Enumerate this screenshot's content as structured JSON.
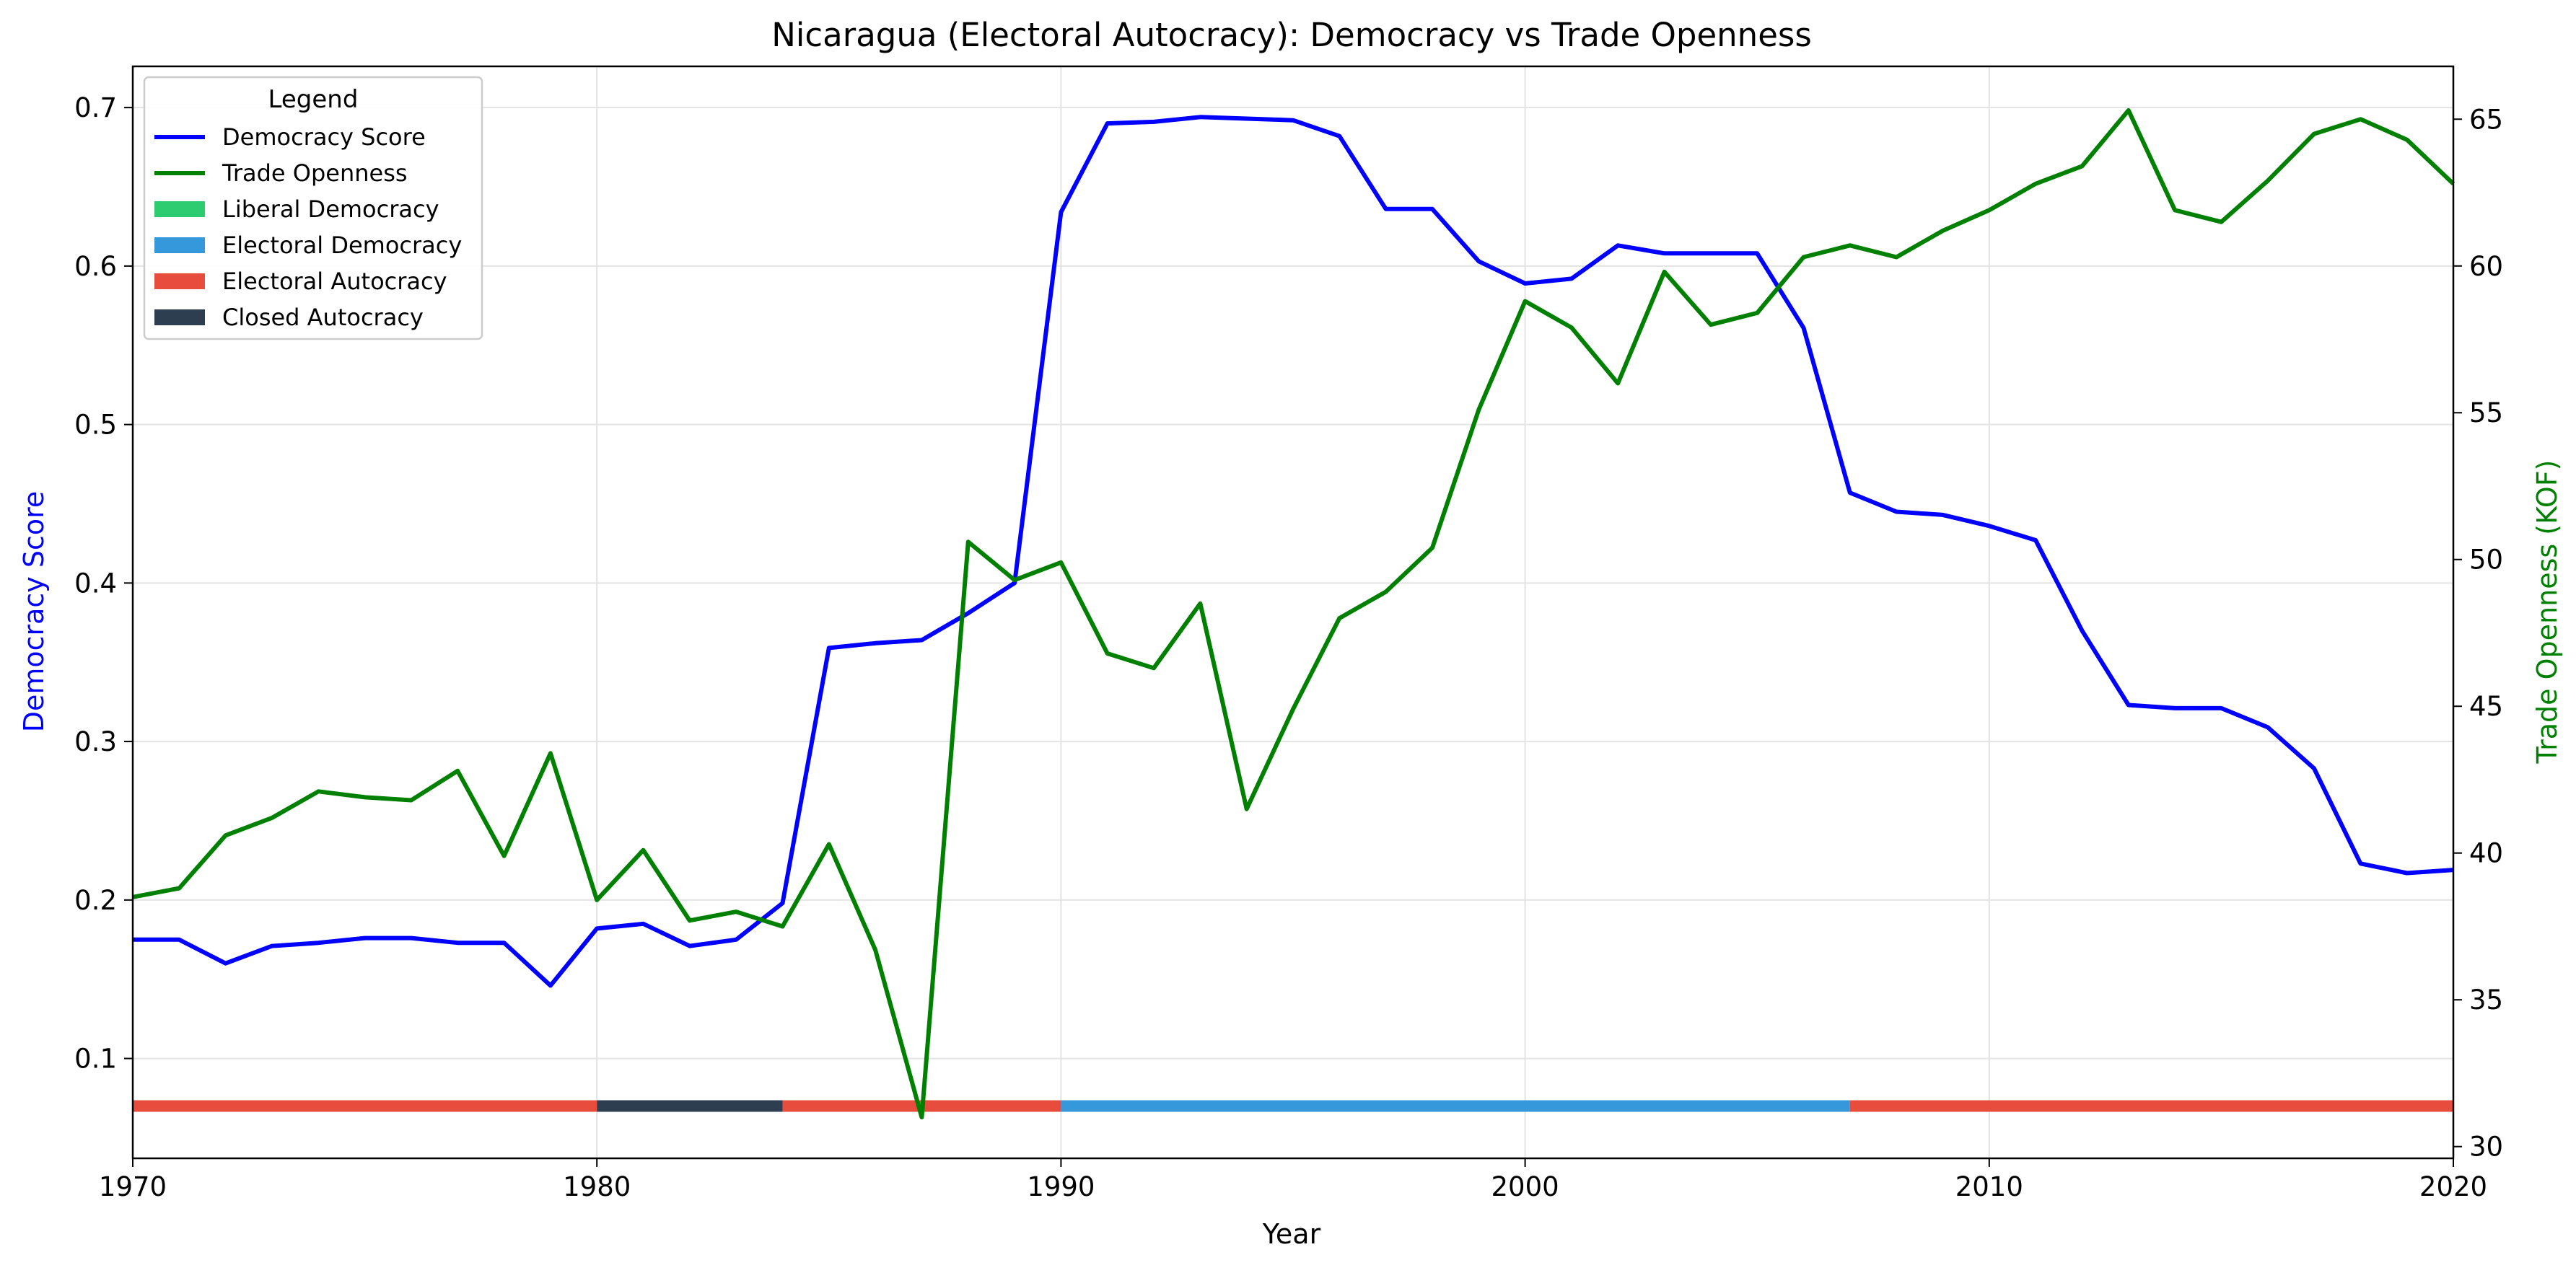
{
  "chart_data": {
    "type": "line",
    "title": "Nicaragua (Electoral Autocracy): Democracy vs Trade Openness",
    "xlabel": "Year",
    "ylabel_left": "Democracy Score",
    "ylabel_right": "Trade Openness (KOF)",
    "xlim": [
      1970,
      2020
    ],
    "ylim_left": [
      0.037,
      0.726
    ],
    "ylim_right": [
      29.6,
      66.8
    ],
    "x_ticks": [
      "1970",
      "1980",
      "1990",
      "2000",
      "2010",
      "2020"
    ],
    "y_ticks_left": [
      "0.1",
      "0.2",
      "0.3",
      "0.4",
      "0.5",
      "0.6",
      "0.7"
    ],
    "y_ticks_right": [
      "30",
      "35",
      "40",
      "45",
      "50",
      "55",
      "60",
      "65"
    ],
    "grid": true,
    "legend": {
      "title": "Legend",
      "position": "top-left",
      "entries": [
        {
          "label": "Democracy Score",
          "kind": "line",
          "color": "#0000ff"
        },
        {
          "label": "Trade Openness",
          "kind": "line",
          "color": "#008000"
        },
        {
          "label": "Liberal Democracy",
          "kind": "patch",
          "color": "#2ecc71"
        },
        {
          "label": "Electoral Democracy",
          "kind": "patch",
          "color": "#3498db"
        },
        {
          "label": "Electoral Autocracy",
          "kind": "patch",
          "color": "#e74c3c"
        },
        {
          "label": "Closed Autocracy",
          "kind": "patch",
          "color": "#2c3e50"
        }
      ]
    },
    "regime_band": {
      "y_value": 0.07,
      "segments": [
        {
          "start": 1970,
          "end": 1980,
          "regime": "Electoral Autocracy",
          "color": "#e74c3c"
        },
        {
          "start": 1980,
          "end": 1984,
          "regime": "Closed Autocracy",
          "color": "#2c3e50"
        },
        {
          "start": 1984,
          "end": 1990,
          "regime": "Electoral Autocracy",
          "color": "#e74c3c"
        },
        {
          "start": 1990,
          "end": 2007,
          "regime": "Electoral Democracy",
          "color": "#3498db"
        },
        {
          "start": 2007,
          "end": 2020,
          "regime": "Electoral Autocracy",
          "color": "#e74c3c"
        }
      ]
    },
    "series": [
      {
        "name": "Democracy Score",
        "axis": "left",
        "color": "#0000ff",
        "x": [
          1970,
          1971,
          1972,
          1973,
          1974,
          1975,
          1976,
          1977,
          1978,
          1979,
          1980,
          1981,
          1982,
          1983,
          1984,
          1985,
          1986,
          1987,
          1988,
          1989,
          1990,
          1991,
          1992,
          1993,
          1994,
          1995,
          1996,
          1997,
          1998,
          1999,
          2000,
          2001,
          2002,
          2003,
          2004,
          2005,
          2006,
          2007,
          2008,
          2009,
          2010,
          2011,
          2012,
          2013,
          2014,
          2015,
          2016,
          2017,
          2018,
          2019,
          2020
        ],
        "values": [
          0.175,
          0.175,
          0.16,
          0.171,
          0.173,
          0.176,
          0.176,
          0.173,
          0.173,
          0.146,
          0.182,
          0.185,
          0.171,
          0.175,
          0.198,
          0.359,
          0.362,
          0.364,
          0.381,
          0.4,
          0.634,
          0.69,
          0.691,
          0.694,
          0.693,
          0.692,
          0.682,
          0.636,
          0.636,
          0.603,
          0.589,
          0.592,
          0.613,
          0.608,
          0.608,
          0.608,
          0.561,
          0.457,
          0.445,
          0.443,
          0.436,
          0.427,
          0.37,
          0.323,
          0.321,
          0.321,
          0.309,
          0.283,
          0.223,
          0.217,
          0.219
        ]
      },
      {
        "name": "Trade Openness",
        "axis": "right",
        "color": "#008000",
        "x": [
          1970,
          1971,
          1972,
          1973,
          1974,
          1975,
          1976,
          1977,
          1978,
          1979,
          1980,
          1981,
          1982,
          1983,
          1984,
          1985,
          1986,
          1987,
          1988,
          1989,
          1990,
          1991,
          1992,
          1993,
          1994,
          1995,
          1996,
          1997,
          1998,
          1999,
          2000,
          2001,
          2002,
          2003,
          2004,
          2005,
          2006,
          2007,
          2008,
          2009,
          2010,
          2011,
          2012,
          2013,
          2014,
          2015,
          2016,
          2017,
          2018,
          2019,
          2020
        ],
        "values": [
          38.5,
          38.8,
          40.6,
          41.2,
          42.1,
          41.9,
          41.8,
          42.8,
          39.9,
          43.4,
          38.4,
          40.1,
          37.7,
          38.0,
          37.5,
          40.3,
          36.7,
          31.0,
          50.6,
          49.3,
          49.9,
          46.8,
          46.3,
          48.5,
          41.5,
          44.9,
          48.0,
          48.9,
          50.4,
          55.1,
          58.8,
          57.9,
          56.0,
          59.8,
          58.0,
          58.4,
          60.3,
          60.7,
          60.3,
          61.2,
          61.9,
          62.8,
          63.4,
          65.3,
          61.9,
          61.5,
          62.9,
          64.5,
          65.0,
          64.3,
          62.8
        ]
      }
    ]
  }
}
